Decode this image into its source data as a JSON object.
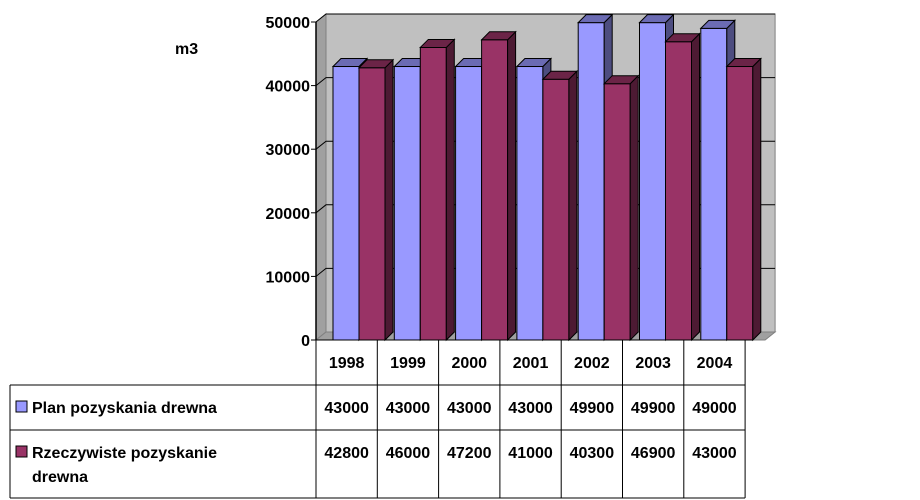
{
  "chart_data": {
    "type": "bar",
    "ylabel": "m3",
    "categories": [
      "1998",
      "1999",
      "2000",
      "2001",
      "2002",
      "2003",
      "2004"
    ],
    "ylim": [
      0,
      50000
    ],
    "yticks": [
      "0",
      "10000",
      "20000",
      "30000",
      "40000",
      "50000"
    ],
    "grid": true,
    "legend": "table-below",
    "series": [
      {
        "name": "Plan pozyskania drewna",
        "color": "#9999ff",
        "values": [
          43000,
          43000,
          43000,
          43000,
          49900,
          49900,
          49000
        ],
        "labels": [
          "43000",
          "43000",
          "43000",
          "43000",
          "49900",
          "49900",
          "49000"
        ]
      },
      {
        "name": "Rzeczywiste pozyskanie drewna",
        "name_lines": [
          "Rzeczywiste pozyskanie",
          "drewna"
        ],
        "color": "#993366",
        "values": [
          42800,
          46000,
          47200,
          41000,
          40300,
          46900,
          43000
        ],
        "labels": [
          "42800",
          "46000",
          "47200",
          "41000",
          "40300",
          "46900",
          "43000"
        ]
      }
    ]
  }
}
